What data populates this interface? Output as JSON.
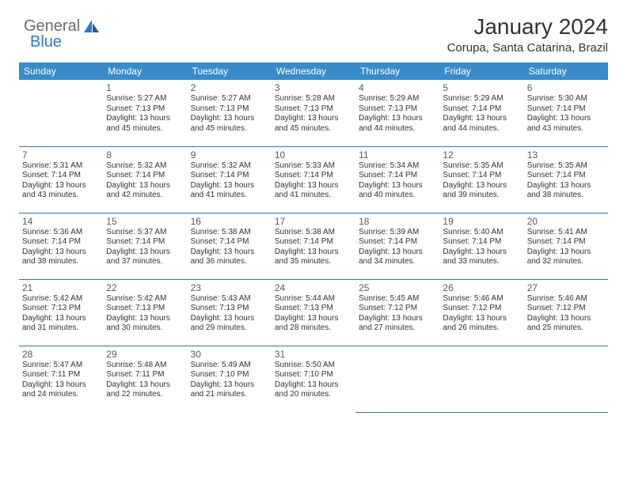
{
  "brand": {
    "part1": "General",
    "part2": "Blue"
  },
  "title": "January 2024",
  "location": "Corupa, Santa Catarina, Brazil",
  "colors": {
    "header_bg": "#3a8bc9",
    "header_text": "#ffffff",
    "row_border": "#3a74a8",
    "brand_blue": "#2f7abf",
    "brand_gray": "#6b6b6b",
    "text": "#333333",
    "background": "#ffffff"
  },
  "typography": {
    "title_fontsize": 28,
    "location_fontsize": 15,
    "dayheader_fontsize": 12,
    "daynum_fontsize": 12,
    "body_fontsize": 10,
    "font_family": "Arial"
  },
  "layout": {
    "columns": 7,
    "rows": 5
  },
  "weekdays": [
    "Sunday",
    "Monday",
    "Tuesday",
    "Wednesday",
    "Thursday",
    "Friday",
    "Saturday"
  ],
  "weeks": [
    [
      null,
      {
        "d": "1",
        "sr": "Sunrise: 5:27 AM",
        "ss": "Sunset: 7:13 PM",
        "dl1": "Daylight: 13 hours",
        "dl2": "and 45 minutes."
      },
      {
        "d": "2",
        "sr": "Sunrise: 5:27 AM",
        "ss": "Sunset: 7:13 PM",
        "dl1": "Daylight: 13 hours",
        "dl2": "and 45 minutes."
      },
      {
        "d": "3",
        "sr": "Sunrise: 5:28 AM",
        "ss": "Sunset: 7:13 PM",
        "dl1": "Daylight: 13 hours",
        "dl2": "and 45 minutes."
      },
      {
        "d": "4",
        "sr": "Sunrise: 5:29 AM",
        "ss": "Sunset: 7:13 PM",
        "dl1": "Daylight: 13 hours",
        "dl2": "and 44 minutes."
      },
      {
        "d": "5",
        "sr": "Sunrise: 5:29 AM",
        "ss": "Sunset: 7:14 PM",
        "dl1": "Daylight: 13 hours",
        "dl2": "and 44 minutes."
      },
      {
        "d": "6",
        "sr": "Sunrise: 5:30 AM",
        "ss": "Sunset: 7:14 PM",
        "dl1": "Daylight: 13 hours",
        "dl2": "and 43 minutes."
      }
    ],
    [
      {
        "d": "7",
        "sr": "Sunrise: 5:31 AM",
        "ss": "Sunset: 7:14 PM",
        "dl1": "Daylight: 13 hours",
        "dl2": "and 43 minutes."
      },
      {
        "d": "8",
        "sr": "Sunrise: 5:32 AM",
        "ss": "Sunset: 7:14 PM",
        "dl1": "Daylight: 13 hours",
        "dl2": "and 42 minutes."
      },
      {
        "d": "9",
        "sr": "Sunrise: 5:32 AM",
        "ss": "Sunset: 7:14 PM",
        "dl1": "Daylight: 13 hours",
        "dl2": "and 41 minutes."
      },
      {
        "d": "10",
        "sr": "Sunrise: 5:33 AM",
        "ss": "Sunset: 7:14 PM",
        "dl1": "Daylight: 13 hours",
        "dl2": "and 41 minutes."
      },
      {
        "d": "11",
        "sr": "Sunrise: 5:34 AM",
        "ss": "Sunset: 7:14 PM",
        "dl1": "Daylight: 13 hours",
        "dl2": "and 40 minutes."
      },
      {
        "d": "12",
        "sr": "Sunrise: 5:35 AM",
        "ss": "Sunset: 7:14 PM",
        "dl1": "Daylight: 13 hours",
        "dl2": "and 39 minutes."
      },
      {
        "d": "13",
        "sr": "Sunrise: 5:35 AM",
        "ss": "Sunset: 7:14 PM",
        "dl1": "Daylight: 13 hours",
        "dl2": "and 38 minutes."
      }
    ],
    [
      {
        "d": "14",
        "sr": "Sunrise: 5:36 AM",
        "ss": "Sunset: 7:14 PM",
        "dl1": "Daylight: 13 hours",
        "dl2": "and 38 minutes."
      },
      {
        "d": "15",
        "sr": "Sunrise: 5:37 AM",
        "ss": "Sunset: 7:14 PM",
        "dl1": "Daylight: 13 hours",
        "dl2": "and 37 minutes."
      },
      {
        "d": "16",
        "sr": "Sunrise: 5:38 AM",
        "ss": "Sunset: 7:14 PM",
        "dl1": "Daylight: 13 hours",
        "dl2": "and 36 minutes."
      },
      {
        "d": "17",
        "sr": "Sunrise: 5:38 AM",
        "ss": "Sunset: 7:14 PM",
        "dl1": "Daylight: 13 hours",
        "dl2": "and 35 minutes."
      },
      {
        "d": "18",
        "sr": "Sunrise: 5:39 AM",
        "ss": "Sunset: 7:14 PM",
        "dl1": "Daylight: 13 hours",
        "dl2": "and 34 minutes."
      },
      {
        "d": "19",
        "sr": "Sunrise: 5:40 AM",
        "ss": "Sunset: 7:14 PM",
        "dl1": "Daylight: 13 hours",
        "dl2": "and 33 minutes."
      },
      {
        "d": "20",
        "sr": "Sunrise: 5:41 AM",
        "ss": "Sunset: 7:14 PM",
        "dl1": "Daylight: 13 hours",
        "dl2": "and 32 minutes."
      }
    ],
    [
      {
        "d": "21",
        "sr": "Sunrise: 5:42 AM",
        "ss": "Sunset: 7:13 PM",
        "dl1": "Daylight: 13 hours",
        "dl2": "and 31 minutes."
      },
      {
        "d": "22",
        "sr": "Sunrise: 5:42 AM",
        "ss": "Sunset: 7:13 PM",
        "dl1": "Daylight: 13 hours",
        "dl2": "and 30 minutes."
      },
      {
        "d": "23",
        "sr": "Sunrise: 5:43 AM",
        "ss": "Sunset: 7:13 PM",
        "dl1": "Daylight: 13 hours",
        "dl2": "and 29 minutes."
      },
      {
        "d": "24",
        "sr": "Sunrise: 5:44 AM",
        "ss": "Sunset: 7:13 PM",
        "dl1": "Daylight: 13 hours",
        "dl2": "and 28 minutes."
      },
      {
        "d": "25",
        "sr": "Sunrise: 5:45 AM",
        "ss": "Sunset: 7:12 PM",
        "dl1": "Daylight: 13 hours",
        "dl2": "and 27 minutes."
      },
      {
        "d": "26",
        "sr": "Sunrise: 5:46 AM",
        "ss": "Sunset: 7:12 PM",
        "dl1": "Daylight: 13 hours",
        "dl2": "and 26 minutes."
      },
      {
        "d": "27",
        "sr": "Sunrise: 5:46 AM",
        "ss": "Sunset: 7:12 PM",
        "dl1": "Daylight: 13 hours",
        "dl2": "and 25 minutes."
      }
    ],
    [
      {
        "d": "28",
        "sr": "Sunrise: 5:47 AM",
        "ss": "Sunset: 7:11 PM",
        "dl1": "Daylight: 13 hours",
        "dl2": "and 24 minutes."
      },
      {
        "d": "29",
        "sr": "Sunrise: 5:48 AM",
        "ss": "Sunset: 7:11 PM",
        "dl1": "Daylight: 13 hours",
        "dl2": "and 22 minutes."
      },
      {
        "d": "30",
        "sr": "Sunrise: 5:49 AM",
        "ss": "Sunset: 7:10 PM",
        "dl1": "Daylight: 13 hours",
        "dl2": "and 21 minutes."
      },
      {
        "d": "31",
        "sr": "Sunrise: 5:50 AM",
        "ss": "Sunset: 7:10 PM",
        "dl1": "Daylight: 13 hours",
        "dl2": "and 20 minutes."
      },
      null,
      null,
      null
    ]
  ]
}
